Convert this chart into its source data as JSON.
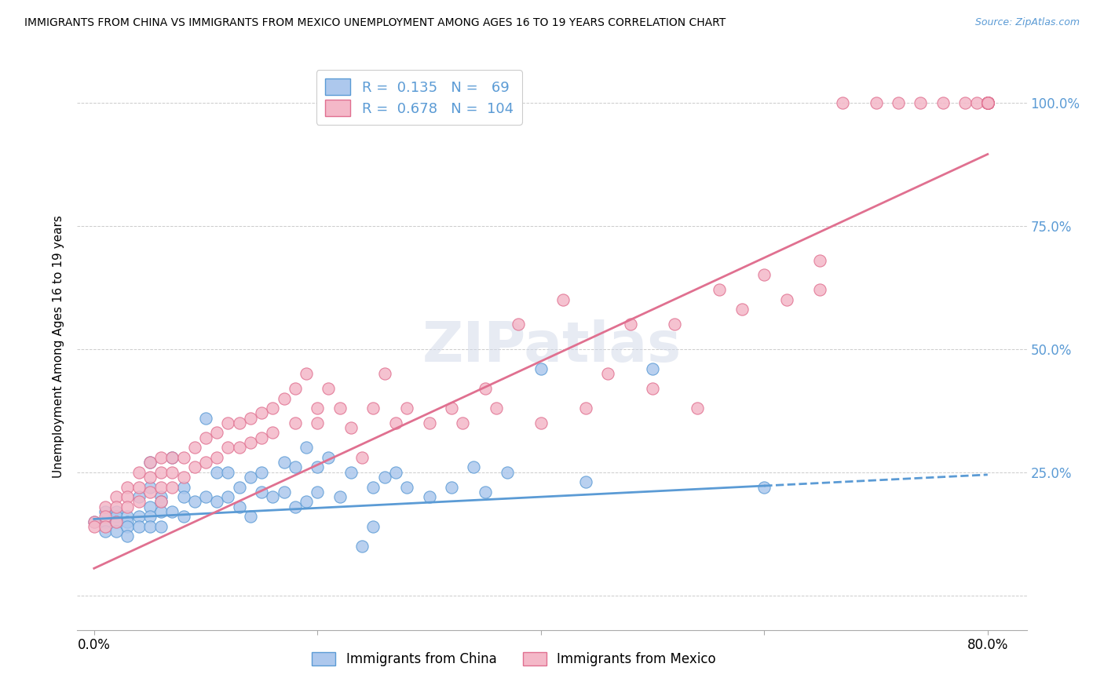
{
  "title": "IMMIGRANTS FROM CHINA VS IMMIGRANTS FROM MEXICO UNEMPLOYMENT AMONG AGES 16 TO 19 YEARS CORRELATION CHART",
  "source": "Source: ZipAtlas.com",
  "ylabel": "Unemployment Among Ages 16 to 19 years",
  "xlim": [
    0.0,
    0.8
  ],
  "ylim": [
    -0.07,
    1.08
  ],
  "china_R": 0.135,
  "china_N": 69,
  "mexico_R": 0.678,
  "mexico_N": 104,
  "china_color": "#adc8ed",
  "china_edge_color": "#5b9bd5",
  "mexico_color": "#f4b8c8",
  "mexico_edge_color": "#e07090",
  "china_line_color": "#5b9bd5",
  "mexico_line_color": "#e07090",
  "tick_color": "#5b9bd5",
  "watermark": "ZIPatlas",
  "legend_label_china": "Immigrants from China",
  "legend_label_mexico": "Immigrants from Mexico",
  "china_line_x0": 0.0,
  "china_line_x1": 0.6,
  "china_line_x2": 0.8,
  "china_line_y0": 0.155,
  "china_line_y1": 0.215,
  "china_line_y2": 0.245,
  "mexico_line_x0": 0.0,
  "mexico_line_x1": 0.8,
  "mexico_line_y0": 0.055,
  "mexico_line_y1": 0.895,
  "china_scatter_x": [
    0.0,
    0.01,
    0.01,
    0.01,
    0.02,
    0.02,
    0.02,
    0.02,
    0.03,
    0.03,
    0.03,
    0.03,
    0.04,
    0.04,
    0.04,
    0.05,
    0.05,
    0.05,
    0.05,
    0.05,
    0.06,
    0.06,
    0.06,
    0.06,
    0.07,
    0.07,
    0.08,
    0.08,
    0.08,
    0.09,
    0.1,
    0.1,
    0.11,
    0.11,
    0.12,
    0.12,
    0.13,
    0.13,
    0.14,
    0.14,
    0.15,
    0.15,
    0.16,
    0.17,
    0.17,
    0.18,
    0.18,
    0.19,
    0.19,
    0.2,
    0.2,
    0.21,
    0.22,
    0.23,
    0.24,
    0.25,
    0.25,
    0.26,
    0.27,
    0.28,
    0.3,
    0.32,
    0.34,
    0.35,
    0.37,
    0.4,
    0.44,
    0.5,
    0.6
  ],
  "china_scatter_y": [
    0.15,
    0.15,
    0.17,
    0.13,
    0.17,
    0.16,
    0.15,
    0.13,
    0.16,
    0.15,
    0.14,
    0.12,
    0.2,
    0.16,
    0.14,
    0.27,
    0.22,
    0.18,
    0.16,
    0.14,
    0.2,
    0.19,
    0.17,
    0.14,
    0.28,
    0.17,
    0.22,
    0.2,
    0.16,
    0.19,
    0.36,
    0.2,
    0.25,
    0.19,
    0.25,
    0.2,
    0.22,
    0.18,
    0.24,
    0.16,
    0.25,
    0.21,
    0.2,
    0.27,
    0.21,
    0.26,
    0.18,
    0.3,
    0.19,
    0.26,
    0.21,
    0.28,
    0.2,
    0.25,
    0.1,
    0.22,
    0.14,
    0.24,
    0.25,
    0.22,
    0.2,
    0.22,
    0.26,
    0.21,
    0.25,
    0.46,
    0.23,
    0.46,
    0.22
  ],
  "mexico_scatter_x": [
    0.0,
    0.0,
    0.01,
    0.01,
    0.01,
    0.02,
    0.02,
    0.02,
    0.03,
    0.03,
    0.03,
    0.04,
    0.04,
    0.04,
    0.05,
    0.05,
    0.05,
    0.06,
    0.06,
    0.06,
    0.06,
    0.07,
    0.07,
    0.07,
    0.08,
    0.08,
    0.09,
    0.09,
    0.1,
    0.1,
    0.11,
    0.11,
    0.12,
    0.12,
    0.13,
    0.13,
    0.14,
    0.14,
    0.15,
    0.15,
    0.16,
    0.16,
    0.17,
    0.18,
    0.18,
    0.19,
    0.2,
    0.2,
    0.21,
    0.22,
    0.23,
    0.24,
    0.25,
    0.26,
    0.27,
    0.28,
    0.3,
    0.32,
    0.33,
    0.35,
    0.36,
    0.38,
    0.4,
    0.42,
    0.44,
    0.46,
    0.48,
    0.5,
    0.52,
    0.54,
    0.56,
    0.58,
    0.6,
    0.62,
    0.65,
    0.65,
    0.67,
    0.7,
    0.72,
    0.74,
    0.76,
    0.78,
    0.79,
    0.8,
    0.8,
    0.8,
    0.8,
    0.8,
    0.8,
    0.8,
    0.8,
    0.8,
    0.8,
    0.8,
    0.8,
    0.8,
    0.8,
    0.8,
    0.8,
    0.8,
    0.8,
    0.8,
    0.8,
    0.8
  ],
  "mexico_scatter_y": [
    0.15,
    0.14,
    0.18,
    0.16,
    0.14,
    0.2,
    0.18,
    0.15,
    0.22,
    0.2,
    0.18,
    0.25,
    0.22,
    0.19,
    0.27,
    0.24,
    0.21,
    0.28,
    0.25,
    0.22,
    0.19,
    0.28,
    0.25,
    0.22,
    0.28,
    0.24,
    0.3,
    0.26,
    0.32,
    0.27,
    0.33,
    0.28,
    0.35,
    0.3,
    0.35,
    0.3,
    0.36,
    0.31,
    0.37,
    0.32,
    0.38,
    0.33,
    0.4,
    0.42,
    0.35,
    0.45,
    0.38,
    0.35,
    0.42,
    0.38,
    0.34,
    0.28,
    0.38,
    0.45,
    0.35,
    0.38,
    0.35,
    0.38,
    0.35,
    0.42,
    0.38,
    0.55,
    0.35,
    0.6,
    0.38,
    0.45,
    0.55,
    0.42,
    0.55,
    0.38,
    0.62,
    0.58,
    0.65,
    0.6,
    0.62,
    0.68,
    1.0,
    1.0,
    1.0,
    1.0,
    1.0,
    1.0,
    1.0,
    1.0,
    1.0,
    1.0,
    1.0,
    1.0,
    1.0,
    1.0,
    1.0,
    1.0,
    1.0,
    1.0,
    1.0,
    1.0,
    1.0,
    1.0,
    1.0,
    1.0,
    1.0,
    1.0,
    1.0,
    1.0
  ]
}
